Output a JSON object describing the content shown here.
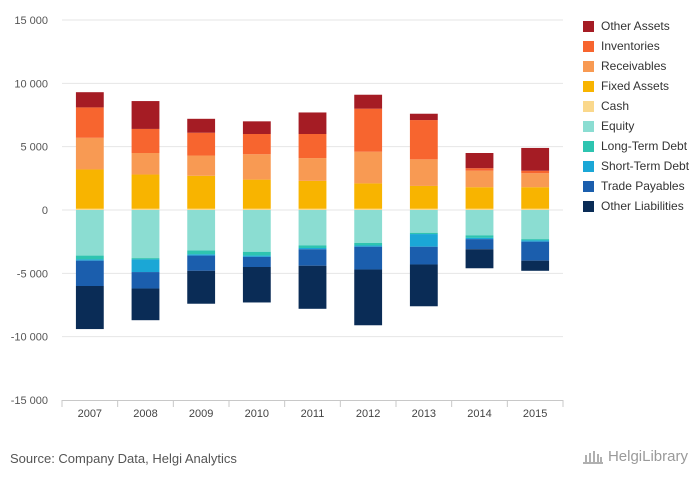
{
  "source": "Source: Company Data, Helgi Analytics",
  "brand": "HelgiLibrary",
  "chart_data": {
    "type": "bar",
    "stacked": true,
    "categories": [
      "2007",
      "2008",
      "2009",
      "2010",
      "2011",
      "2012",
      "2013",
      "2014",
      "2015"
    ],
    "ylim": [
      -15000,
      15000
    ],
    "yticks": [
      15000,
      10000,
      5000,
      0,
      -5000,
      -10000,
      -15000
    ],
    "ytick_labels": [
      "15 000",
      "10 000",
      "5 000",
      "0",
      "-5 000",
      "-10 000",
      "-15 000"
    ],
    "grid": true,
    "legend_position": "right",
    "legend": [
      {
        "key": "other_assets",
        "name": "Other Assets",
        "color": "#A51C24"
      },
      {
        "key": "inventories",
        "name": "Inventories",
        "color": "#F7652F"
      },
      {
        "key": "receivables",
        "name": "Receivables",
        "color": "#F89A53"
      },
      {
        "key": "fixed_assets",
        "name": "Fixed Assets",
        "color": "#F8B400"
      },
      {
        "key": "cash",
        "name": "Cash",
        "color": "#FAD88C"
      },
      {
        "key": "equity",
        "name": "Equity",
        "color": "#8BDDD2"
      },
      {
        "key": "long_term_debt",
        "name": "Long-Term Debt",
        "color": "#2EC4B0"
      },
      {
        "key": "short_term_debt",
        "name": "Short-Term Debt",
        "color": "#1BA7D6"
      },
      {
        "key": "trade_payables",
        "name": "Trade Payables",
        "color": "#1B5EAD"
      },
      {
        "key": "other_liabilities",
        "name": "Other Liabilities",
        "color": "#0A2C56"
      }
    ],
    "assets_stack_order": [
      "cash",
      "fixed_assets",
      "receivables",
      "inventories",
      "other_assets"
    ],
    "liabilities_stack_order": [
      "equity",
      "long_term_debt",
      "short_term_debt",
      "trade_payables",
      "other_liabilities"
    ],
    "series": [
      {
        "key": "cash",
        "values": [
          100,
          100,
          100,
          100,
          100,
          100,
          100,
          100,
          100
        ]
      },
      {
        "key": "fixed_assets",
        "values": [
          3100,
          2700,
          2600,
          2300,
          2200,
          2000,
          1800,
          1700,
          1700
        ]
      },
      {
        "key": "receivables",
        "values": [
          2500,
          1700,
          1600,
          2000,
          1800,
          2500,
          2100,
          1300,
          1100
        ]
      },
      {
        "key": "inventories",
        "values": [
          2400,
          1900,
          1800,
          1600,
          1900,
          3400,
          3100,
          200,
          200
        ]
      },
      {
        "key": "other_assets",
        "values": [
          1200,
          2200,
          1100,
          1000,
          1700,
          1100,
          500,
          1200,
          1800
        ]
      },
      {
        "key": "equity",
        "values": [
          -3600,
          -3800,
          -3200,
          -3300,
          -2800,
          -2600,
          -1800,
          -2000,
          -2300
        ]
      },
      {
        "key": "long_term_debt",
        "values": [
          -300,
          -100,
          -300,
          -300,
          -200,
          -200,
          -100,
          -200,
          -100
        ]
      },
      {
        "key": "short_term_debt",
        "values": [
          -100,
          -1000,
          -100,
          -100,
          -100,
          -100,
          -1000,
          -100,
          -100
        ]
      },
      {
        "key": "trade_payables",
        "values": [
          -2000,
          -1300,
          -1200,
          -800,
          -1300,
          -1800,
          -1400,
          -800,
          -1500
        ]
      },
      {
        "key": "other_liabilities",
        "values": [
          -3400,
          -2500,
          -2600,
          -2800,
          -3400,
          -4400,
          -3300,
          -1500,
          -800
        ]
      }
    ]
  }
}
